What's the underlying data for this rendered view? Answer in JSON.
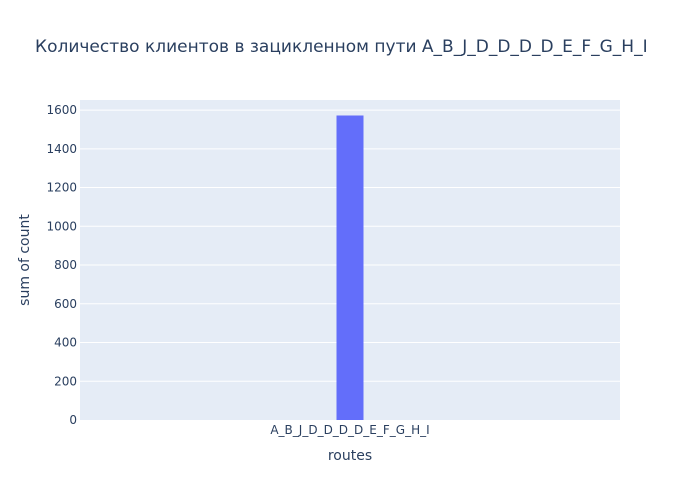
{
  "chart_data": {
    "type": "bar",
    "title": "Количество клиентов в зацикленном пути A_B_J_D_D_D_D_E_F_G_H_I",
    "xlabel": "routes",
    "ylabel": "sum of count",
    "categories": [
      "A_B_J_D_D_D_D_E_F_G_H_I"
    ],
    "values": [
      1572
    ],
    "ylim": [
      0,
      1652
    ],
    "yticks": [
      0,
      200,
      400,
      600,
      800,
      1000,
      1200,
      1400,
      1600
    ],
    "ytick_labels": [
      "0",
      "200",
      "400",
      "600",
      "800",
      "1000",
      "1200",
      "1400",
      "1600"
    ],
    "grid": true,
    "legend": "none",
    "colors": {
      "bar": "#636efa",
      "plot_bg": "#e5ecf6",
      "grid": "#ffffff",
      "text": "#2a3f5f"
    }
  }
}
